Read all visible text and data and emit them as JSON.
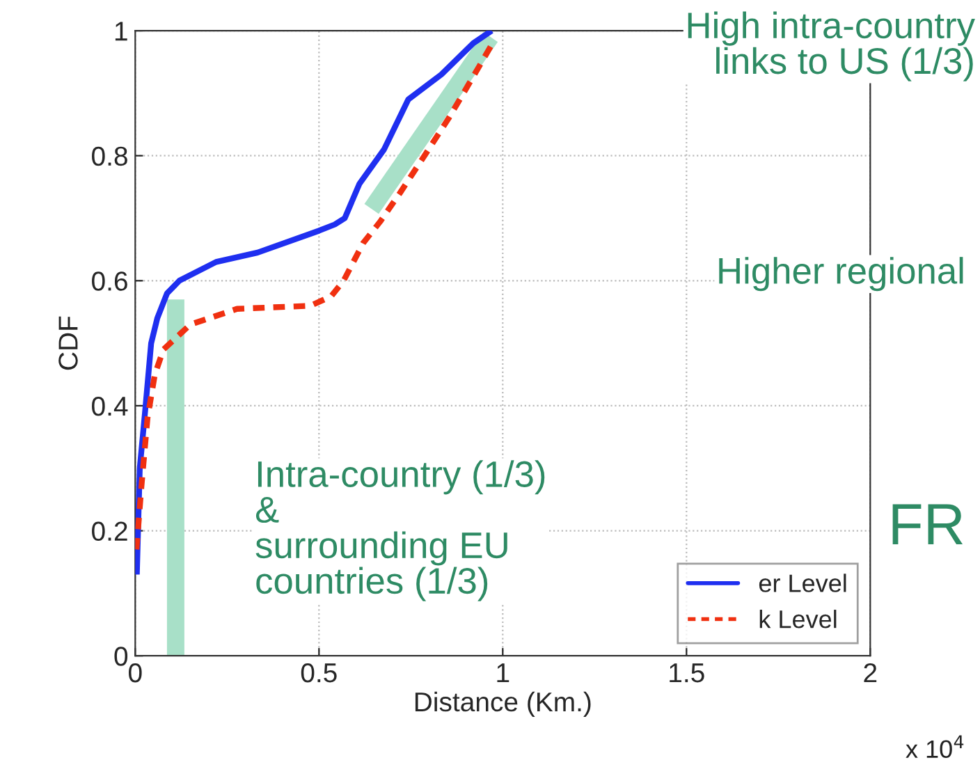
{
  "chart_data": {
    "type": "line",
    "xlabel": "Distance (Km.)",
    "ylabel": "CDF",
    "xlim": [
      0,
      2
    ],
    "ylim": [
      0,
      1
    ],
    "xticks": [
      0,
      0.5,
      1,
      1.5,
      2
    ],
    "yticks": [
      0,
      0.2,
      0.4,
      0.6,
      0.8,
      1
    ],
    "grid": true,
    "legend": "bottom right",
    "series": [
      {
        "name": "er Level",
        "color": "#1f2ff0",
        "line_style": "solid",
        "x": [
          0.0043,
          0.0123,
          0.0267,
          0.0433,
          0.06,
          0.0867,
          0.12,
          0.22,
          0.333,
          0.5,
          0.543,
          0.57,
          0.61,
          0.677,
          0.743,
          0.833,
          0.92,
          0.97
        ],
        "values": [
          0.13,
          0.3,
          0.39,
          0.5,
          0.54,
          0.58,
          0.6,
          0.63,
          0.645,
          0.68,
          0.69,
          0.7,
          0.755,
          0.81,
          0.89,
          0.93,
          0.98,
          1.0
        ]
      },
      {
        "name": "k Level",
        "color": "#f03010",
        "line_style": "dashed",
        "x": [
          0.0033,
          0.0167,
          0.0333,
          0.0533,
          0.0767,
          0.15,
          0.277,
          0.477,
          0.533,
          0.567,
          0.62,
          0.667,
          0.72,
          0.787,
          0.853,
          0.943,
          0.977
        ],
        "values": [
          0.17,
          0.27,
          0.38,
          0.45,
          0.49,
          0.53,
          0.555,
          0.56,
          0.575,
          0.6,
          0.66,
          0.695,
          0.74,
          0.8,
          0.86,
          0.95,
          0.985
        ]
      },
      {
        "color": "#a8e0c8",
        "line_style": "solid",
        "x": [
          0.11,
          0.11
        ],
        "values": [
          0,
          0.57
        ]
      },
      {
        "color": "#a8e0c8",
        "line_style": "solid",
        "x": [
          0.643,
          0.967
        ],
        "values": [
          0.715,
          0.99
        ]
      }
    ],
    "annotations": [
      "High intra-country\nlinks to US (1/3)",
      "Higher regional",
      "Intra-country (1/3)\n&\nsurrounding EU\ncountries (1/3)",
      "FR",
      "x 10$^{4}$"
    ]
  }
}
